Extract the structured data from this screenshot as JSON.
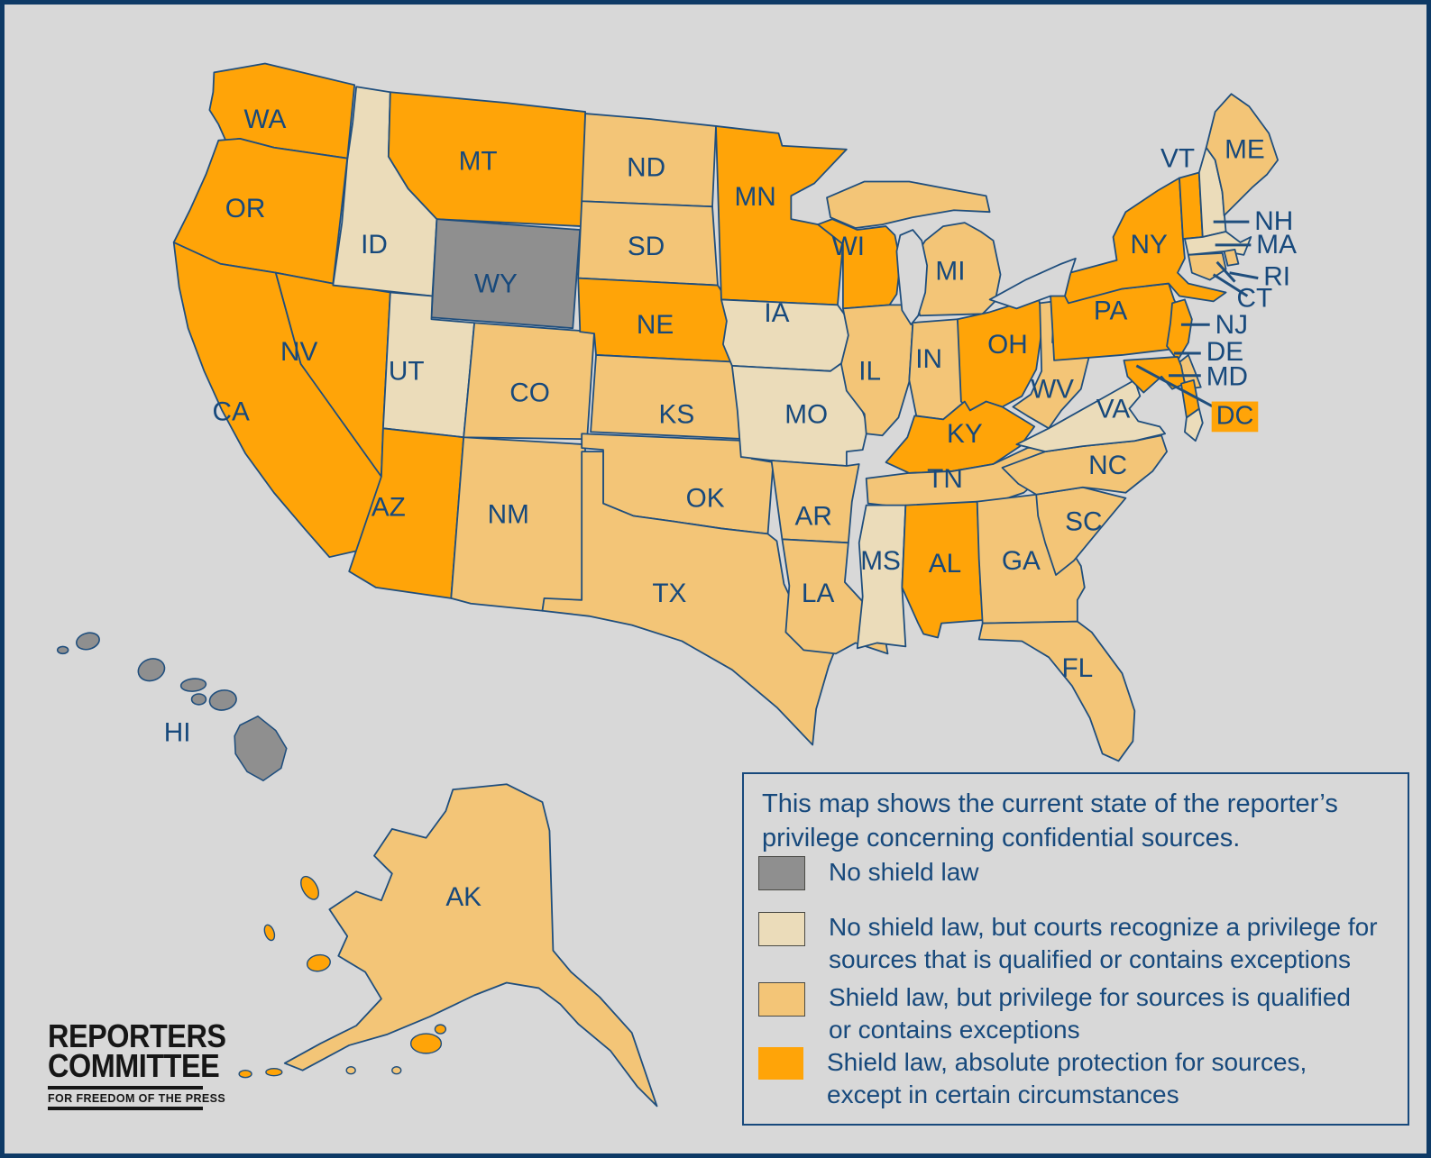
{
  "map": {
    "states": [
      {
        "abbr": "WA",
        "category": "absolute"
      },
      {
        "abbr": "OR",
        "category": "absolute"
      },
      {
        "abbr": "CA",
        "category": "absolute"
      },
      {
        "abbr": "NV",
        "category": "absolute"
      },
      {
        "abbr": "ID",
        "category": "courts_recognize"
      },
      {
        "abbr": "MT",
        "category": "absolute"
      },
      {
        "abbr": "WY",
        "category": "no_shield"
      },
      {
        "abbr": "UT",
        "category": "courts_recognize"
      },
      {
        "abbr": "AZ",
        "category": "absolute"
      },
      {
        "abbr": "CO",
        "category": "qualified"
      },
      {
        "abbr": "NM",
        "category": "qualified"
      },
      {
        "abbr": "ND",
        "category": "qualified"
      },
      {
        "abbr": "SD",
        "category": "qualified"
      },
      {
        "abbr": "NE",
        "category": "absolute"
      },
      {
        "abbr": "KS",
        "category": "qualified"
      },
      {
        "abbr": "OK",
        "category": "qualified"
      },
      {
        "abbr": "TX",
        "category": "qualified"
      },
      {
        "abbr": "MN",
        "category": "absolute"
      },
      {
        "abbr": "IA",
        "category": "courts_recognize"
      },
      {
        "abbr": "MO",
        "category": "courts_recognize"
      },
      {
        "abbr": "AR",
        "category": "qualified"
      },
      {
        "abbr": "LA",
        "category": "qualified"
      },
      {
        "abbr": "WI",
        "category": "absolute"
      },
      {
        "abbr": "IL",
        "category": "qualified"
      },
      {
        "abbr": "IN",
        "category": "qualified"
      },
      {
        "abbr": "MI",
        "category": "qualified"
      },
      {
        "abbr": "OH",
        "category": "absolute"
      },
      {
        "abbr": "KY",
        "category": "absolute"
      },
      {
        "abbr": "TN",
        "category": "qualified"
      },
      {
        "abbr": "MS",
        "category": "courts_recognize"
      },
      {
        "abbr": "AL",
        "category": "absolute"
      },
      {
        "abbr": "GA",
        "category": "qualified"
      },
      {
        "abbr": "FL",
        "category": "qualified"
      },
      {
        "abbr": "SC",
        "category": "qualified"
      },
      {
        "abbr": "NC",
        "category": "qualified"
      },
      {
        "abbr": "VA",
        "category": "courts_recognize"
      },
      {
        "abbr": "WV",
        "category": "qualified"
      },
      {
        "abbr": "PA",
        "category": "absolute"
      },
      {
        "abbr": "NY",
        "category": "absolute"
      },
      {
        "abbr": "VT",
        "category": "absolute"
      },
      {
        "abbr": "NH",
        "category": "courts_recognize"
      },
      {
        "abbr": "ME",
        "category": "qualified"
      },
      {
        "abbr": "MA",
        "category": "courts_recognize"
      },
      {
        "abbr": "RI",
        "category": "qualified"
      },
      {
        "abbr": "CT",
        "category": "qualified"
      },
      {
        "abbr": "NJ",
        "category": "absolute"
      },
      {
        "abbr": "DE",
        "category": "qualified"
      },
      {
        "abbr": "MD",
        "category": "absolute"
      },
      {
        "abbr": "DC",
        "category": "absolute"
      },
      {
        "abbr": "AK",
        "category": "qualified"
      },
      {
        "abbr": "HI",
        "category": "no_shield"
      }
    ]
  },
  "legend": {
    "title": "This map shows the current state of the reporter’s privilege concerning confidential sources.",
    "items": [
      {
        "key": "no_shield",
        "label": "No shield law",
        "color": "#8f8f8f"
      },
      {
        "key": "courts_recognize",
        "label": "No shield law, but courts recognize a privilege for sources that is qualified or contains exceptions",
        "color": "#ebdcba"
      },
      {
        "key": "qualified",
        "label": "Shield law, but privilege for sources is qualified or contains exceptions",
        "color": "#f3c577"
      },
      {
        "key": "absolute",
        "label": "Shield law, absolute protection for sources, except in certain circumstances",
        "color": "#ffa408"
      }
    ]
  },
  "logo": {
    "line1": "REPORTERS",
    "line2": "COMMITTEE",
    "tagline": "FOR FREEDOM OF THE PRESS"
  },
  "colors": {
    "background": "#d8d8d8",
    "frame_border": "#0e3a66",
    "state_border": "#1f4e7d",
    "label_text": "#17497c"
  }
}
